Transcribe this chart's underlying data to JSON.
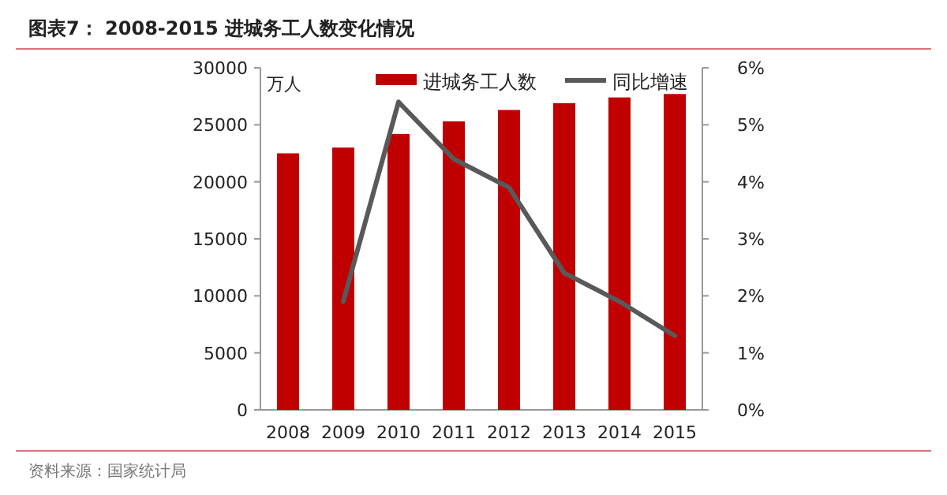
{
  "chart_data": {
    "type": "bar",
    "title": "图表7：  2008-2015 进城务工人数变化情况",
    "categories": [
      "2008",
      "2009",
      "2010",
      "2011",
      "2012",
      "2013",
      "2014",
      "2015"
    ],
    "series": [
      {
        "name": "进城务工人数",
        "color": "#c00000",
        "values": [
          22500,
          23000,
          24200,
          25300,
          26300,
          26900,
          27400,
          27700
        ]
      },
      {
        "name": "同比增速",
        "type": "line",
        "axis": "y2",
        "color": "#595959",
        "values": [
          null,
          1.9,
          5.4,
          4.4,
          3.9,
          2.4,
          1.9,
          1.3
        ]
      }
    ],
    "ylabel": "万人",
    "ylim": [
      0,
      30000
    ],
    "yticks": [
      0,
      5000,
      10000,
      15000,
      20000,
      25000,
      30000
    ],
    "y2lim": [
      0,
      6
    ],
    "y2ticks": [
      {
        "value": 0,
        "label": "0%"
      },
      {
        "value": 1,
        "label": "1%"
      },
      {
        "value": 2,
        "label": "2%"
      },
      {
        "value": 3,
        "label": "3%"
      },
      {
        "value": 4,
        "label": "4%"
      },
      {
        "value": 5,
        "label": "5%"
      },
      {
        "value": 6,
        "label": "6%"
      }
    ],
    "legend": "top",
    "grid": false,
    "annotations": [
      "资料来源：国家统计局"
    ]
  }
}
